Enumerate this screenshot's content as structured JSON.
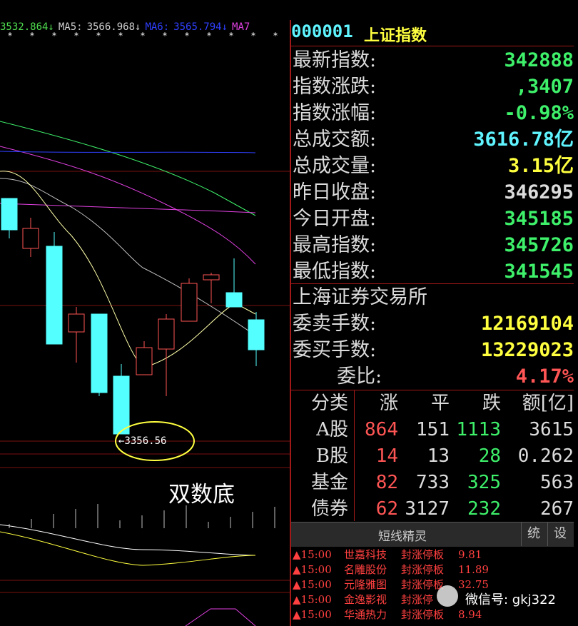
{
  "ma_bar": [
    {
      "text": "3532.864↓",
      "color": "#4fdc4f"
    },
    {
      "text": "MA5:",
      "color": "#d0d0d0"
    },
    {
      "text": "3566.968↓",
      "color": "#d0d0d0"
    },
    {
      "text": "MA6:",
      "color": "#3040ff"
    },
    {
      "text": "3565.794↓",
      "color": "#3040ff"
    },
    {
      "text": "MA7",
      "color": "#e040e0"
    }
  ],
  "chart": {
    "low_label": "←3356.56",
    "annotation": "双数底"
  },
  "header": {
    "code": "000001",
    "name": "上证指数"
  },
  "quotes": [
    {
      "label": "最新指数:",
      "value": "342888",
      "color": "#3ef06a"
    },
    {
      "label": "指数涨跌:",
      "value": ",3407",
      "color": "#3ef06a"
    },
    {
      "label": "指数涨幅:",
      "value": "-0.98%",
      "color": "#3ef06a"
    },
    {
      "label": "总成交额:",
      "value": "3616.78亿",
      "color": "#5ff4ff"
    },
    {
      "label": "总成交量:",
      "value": "3.15亿",
      "color": "#ffff40"
    },
    {
      "label": "昨日收盘:",
      "value": "346295",
      "color": "#dcdcdc"
    },
    {
      "label": "今日开盘:",
      "value": "345185",
      "color": "#3ef06a"
    },
    {
      "label": "最高指数:",
      "value": "345726",
      "color": "#3ef06a"
    },
    {
      "label": "最低指数:",
      "value": "341545",
      "color": "#3ef06a"
    }
  ],
  "exchange": "上海证券交易所",
  "orders": [
    {
      "label": "委卖手数:",
      "value": "12169104",
      "color": "#ffff40"
    },
    {
      "label": "委买手数:",
      "value": "13229023",
      "color": "#ffff40"
    },
    {
      "label": "委比:",
      "value": "4.17%",
      "color": "#ff5555"
    }
  ],
  "breadth": {
    "header": [
      "分类",
      "涨",
      "平",
      "跌",
      "额[亿]"
    ],
    "rows": [
      [
        "A股",
        "864",
        "151",
        "1113",
        "3615"
      ],
      [
        "B股",
        "14",
        "13",
        "28",
        "0.262"
      ],
      [
        "基金",
        "82",
        "733",
        "325",
        "563"
      ],
      [
        "债券",
        "62",
        "3127",
        "232",
        "267"
      ]
    ]
  },
  "sprite": {
    "title": "短线精灵",
    "buttons": [
      "统",
      "设"
    ],
    "rows": [
      [
        "▲15:00",
        "世嘉科技",
        "封涨停板",
        "9.81"
      ],
      [
        "▲15:00",
        "名雕股份",
        "封涨停板",
        "11.89"
      ],
      [
        "▲15:00",
        "元隆雅图",
        "封涨停板",
        "32.75"
      ],
      [
        "▲15:00",
        "金逸影视",
        "封涨停"
      ],
      [
        "▲15:00",
        "华通热力",
        "封涨停板",
        "8.94"
      ]
    ]
  },
  "watermark": "微信号: gkj322"
}
